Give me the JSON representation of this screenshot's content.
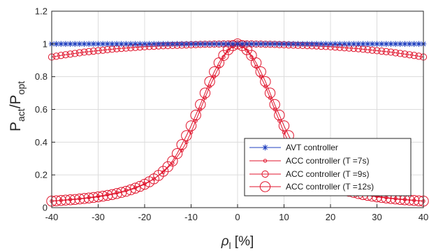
{
  "chart_data": {
    "type": "line",
    "xlabel": {
      "main": "ρ",
      "sub": "l",
      "tail": " [%]"
    },
    "ylabel": {
      "p1": "P",
      "s1": "act",
      "p2": "/P",
      "s2": "opt"
    },
    "xlim": [
      -40,
      40
    ],
    "ylim": [
      0,
      1.2
    ],
    "x_ticks": [
      "-40",
      "-30",
      "-20",
      "-10",
      "0",
      "10",
      "20",
      "30",
      "40"
    ],
    "y_ticks": [
      "0",
      "0.2",
      "0.4",
      "0.6",
      "0.8",
      "1",
      "1.2"
    ],
    "grid": true,
    "legend_position": "bottom-right",
    "series": [
      {
        "name": "AVT controller",
        "color": "#1f3fbf",
        "marker": "asterisk",
        "x": [
          -40,
          -39,
          -38,
          -37,
          -36,
          -35,
          -34,
          -33,
          -32,
          -31,
          -30,
          -29,
          -28,
          -27,
          -26,
          -25,
          -24,
          -23,
          -22,
          -21,
          -20,
          -19,
          -18,
          -17,
          -16,
          -15,
          -14,
          -13,
          -12,
          -11,
          -10,
          -9,
          -8,
          -7,
          -6,
          -5,
          -4,
          -3,
          -2,
          -1,
          0,
          1,
          2,
          3,
          4,
          5,
          6,
          7,
          8,
          9,
          10,
          11,
          12,
          13,
          14,
          15,
          16,
          17,
          18,
          19,
          20,
          21,
          22,
          23,
          24,
          25,
          26,
          27,
          28,
          29,
          30,
          31,
          32,
          33,
          34,
          35,
          36,
          37,
          38,
          39,
          40
        ],
        "y": [
          1,
          1,
          1,
          1,
          1,
          1,
          1,
          1,
          1,
          1,
          1,
          1,
          1,
          1,
          1,
          1,
          1,
          1,
          1,
          1,
          1,
          1,
          1,
          1,
          1,
          1,
          1,
          1,
          1,
          1,
          1,
          1,
          1,
          1,
          1,
          1,
          1,
          1,
          1,
          1,
          1,
          1,
          1,
          1,
          1,
          1,
          1,
          1,
          1,
          1,
          1,
          1,
          1,
          1,
          1,
          1,
          1,
          1,
          1,
          1,
          1,
          1,
          1,
          1,
          1,
          1,
          1,
          1,
          1,
          1,
          1,
          1,
          1,
          1,
          1,
          1,
          1,
          1,
          1,
          1,
          1
        ]
      },
      {
        "name": "ACC controller (T =7s)",
        "color": "#e0142c",
        "marker": "circle-small",
        "x": [
          -40,
          -38,
          -36,
          -34,
          -32,
          -30,
          -28,
          -26,
          -24,
          -22,
          -20,
          -18,
          -16,
          -14,
          -12,
          -11,
          -10,
          -9,
          -8,
          -7,
          -6,
          -5,
          -4,
          -3,
          -2,
          -1,
          0,
          1,
          2,
          3,
          4,
          5,
          6,
          7,
          8,
          9,
          10,
          11,
          12,
          14,
          16,
          18,
          20,
          22,
          24,
          26,
          28,
          30,
          32,
          34,
          36,
          38,
          40
        ],
        "y": [
          0.04,
          0.045,
          0.05,
          0.055,
          0.062,
          0.07,
          0.08,
          0.092,
          0.106,
          0.123,
          0.146,
          0.176,
          0.217,
          0.272,
          0.35,
          0.4,
          0.46,
          0.53,
          0.6,
          0.67,
          0.74,
          0.8,
          0.86,
          0.92,
          0.96,
          0.985,
          1.0,
          0.985,
          0.96,
          0.92,
          0.86,
          0.8,
          0.74,
          0.67,
          0.6,
          0.53,
          0.46,
          0.4,
          0.35,
          0.272,
          0.217,
          0.176,
          0.146,
          0.123,
          0.106,
          0.092,
          0.08,
          0.07,
          0.062,
          0.055,
          0.05,
          0.045,
          0.04
        ]
      },
      {
        "name": "ACC controller (T =9s)",
        "color": "#e0142c",
        "marker": "circle-medium",
        "x": [
          -40,
          -39,
          -38,
          -37,
          -36,
          -35,
          -34,
          -33,
          -32,
          -31,
          -30,
          -29,
          -28,
          -27,
          -26,
          -25,
          -24,
          -23,
          -22,
          -21,
          -20,
          -19,
          -18,
          -17,
          -16,
          -15,
          -14,
          -13,
          -12,
          -11,
          -10,
          -9,
          -8,
          -7,
          -6,
          -5,
          -4,
          -3,
          -2,
          -1,
          0,
          1,
          2,
          3,
          4,
          5,
          6,
          7,
          8,
          9,
          10,
          11,
          12,
          13,
          14,
          15,
          16,
          17,
          18,
          19,
          20,
          21,
          22,
          23,
          24,
          25,
          26,
          27,
          28,
          29,
          30,
          31,
          32,
          33,
          34,
          35,
          36,
          37,
          38,
          39,
          40
        ],
        "y": [
          0.92,
          0.925,
          0.93,
          0.934,
          0.938,
          0.942,
          0.946,
          0.95,
          0.953,
          0.956,
          0.959,
          0.962,
          0.965,
          0.968,
          0.971,
          0.973,
          0.975,
          0.977,
          0.979,
          0.981,
          0.983,
          0.985,
          0.986,
          0.988,
          0.989,
          0.99,
          0.991,
          0.992,
          0.993,
          0.994,
          0.995,
          0.996,
          0.997,
          0.998,
          0.998,
          0.999,
          0.999,
          1.0,
          1.0,
          1.0,
          1.0,
          1.0,
          1.0,
          1.0,
          0.999,
          0.999,
          0.998,
          0.998,
          0.997,
          0.996,
          0.995,
          0.994,
          0.993,
          0.992,
          0.991,
          0.99,
          0.989,
          0.988,
          0.986,
          0.985,
          0.983,
          0.981,
          0.979,
          0.977,
          0.975,
          0.973,
          0.971,
          0.968,
          0.965,
          0.962,
          0.959,
          0.956,
          0.953,
          0.95,
          0.946,
          0.942,
          0.938,
          0.934,
          0.93,
          0.925,
          0.92
        ]
      },
      {
        "name": "ACC controller (T =12s)",
        "color": "#e0142c",
        "marker": "circle-large",
        "x": [
          -40,
          -39,
          -38,
          -37,
          -36,
          -35,
          -34,
          -33,
          -32,
          -31,
          -30,
          -29,
          -28,
          -27,
          -26,
          -25,
          -24,
          -23,
          -22,
          -21,
          -20,
          -19,
          -18,
          -17,
          -16,
          -15,
          -14,
          -13,
          -12,
          -11,
          -10,
          -9,
          -8,
          -7,
          -6,
          -5,
          -4,
          -3,
          -2,
          -1,
          0,
          1,
          2,
          3,
          4,
          5,
          6,
          7,
          8,
          9,
          10,
          11,
          12,
          13,
          14,
          15,
          16,
          17,
          18,
          19,
          20,
          21,
          22,
          23,
          24,
          25,
          26,
          27,
          28,
          29,
          30,
          31,
          32,
          33,
          34,
          35,
          36,
          37,
          38,
          39,
          40
        ],
        "y": [
          0.04,
          0.042,
          0.044,
          0.046,
          0.048,
          0.05,
          0.053,
          0.056,
          0.059,
          0.062,
          0.066,
          0.07,
          0.075,
          0.08,
          0.086,
          0.093,
          0.1,
          0.109,
          0.119,
          0.13,
          0.143,
          0.158,
          0.176,
          0.197,
          0.222,
          0.25,
          0.285,
          0.33,
          0.385,
          0.44,
          0.5,
          0.565,
          0.63,
          0.7,
          0.77,
          0.83,
          0.885,
          0.93,
          0.965,
          0.99,
          1.0,
          0.99,
          0.965,
          0.93,
          0.885,
          0.83,
          0.77,
          0.7,
          0.63,
          0.565,
          0.5,
          0.44,
          0.385,
          0.33,
          0.285,
          0.25,
          0.222,
          0.197,
          0.176,
          0.158,
          0.143,
          0.13,
          0.119,
          0.109,
          0.1,
          0.093,
          0.086,
          0.08,
          0.075,
          0.07,
          0.066,
          0.062,
          0.059,
          0.056,
          0.053,
          0.05,
          0.048,
          0.046,
          0.044,
          0.042,
          0.04
        ]
      }
    ]
  }
}
